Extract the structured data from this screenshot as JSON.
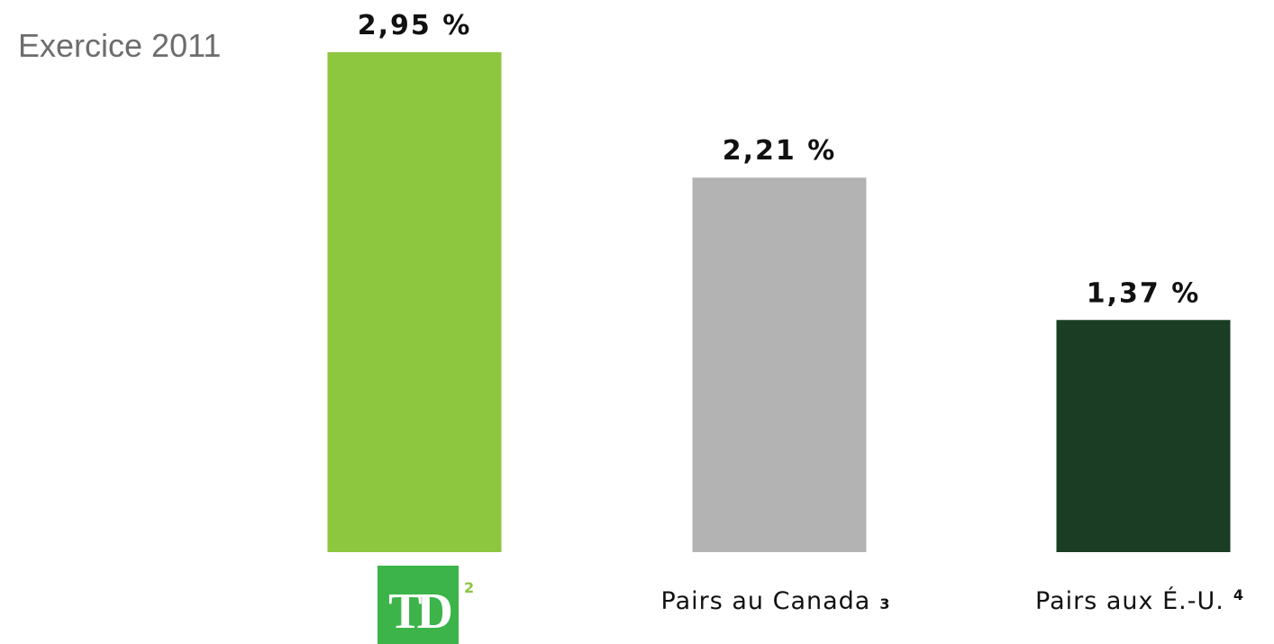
{
  "chart_data": {
    "type": "bar",
    "title": "Exercice 2011",
    "categories": [
      "TD",
      "Pairs au Canada",
      "Pairs aux É.-U."
    ],
    "category_notes": [
      "2",
      "3",
      "4"
    ],
    "values": [
      2.95,
      2.21,
      1.37
    ],
    "value_labels": [
      "2,95 %",
      "2,21 %",
      "1,37 %"
    ],
    "colors": [
      "#8dc63f",
      "#b3b3b3",
      "#1a3d24"
    ]
  }
}
